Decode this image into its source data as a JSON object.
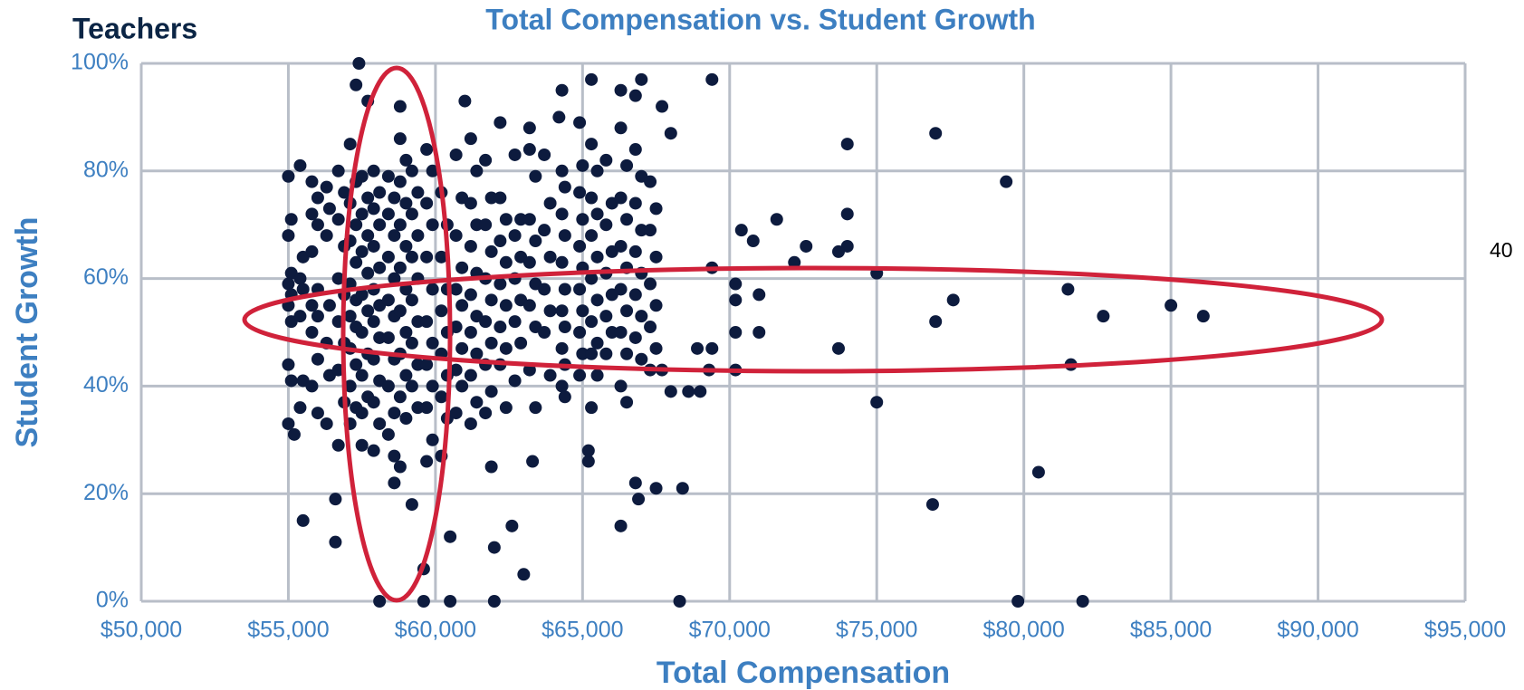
{
  "header": "Teachers",
  "side_note": "40",
  "chart_data": {
    "type": "scatter",
    "title": "Total Compensation vs. Student Growth",
    "x_label": "Total Compensation",
    "y_label": "Student Growth",
    "color": "#0d1b3e",
    "grid": true,
    "xlim": [
      50000,
      95000
    ],
    "ylim": [
      0,
      100
    ],
    "xticks": [
      {
        "value": 50000,
        "label": "$50,000"
      },
      {
        "value": 55000,
        "label": "$55,000"
      },
      {
        "value": 60000,
        "label": "$60,000"
      },
      {
        "value": 65000,
        "label": "$65,000"
      },
      {
        "value": 70000,
        "label": "$70,000"
      },
      {
        "value": 75000,
        "label": "$75,000"
      },
      {
        "value": 80000,
        "label": "$80,000"
      },
      {
        "value": 85000,
        "label": "$85,000"
      },
      {
        "value": 90000,
        "label": "$90,000"
      },
      {
        "value": 95000,
        "label": "$95,000"
      }
    ],
    "yticks": [
      {
        "value": 0,
        "label": "0%"
      },
      {
        "value": 20,
        "label": "20%"
      },
      {
        "value": 40,
        "label": "40%"
      },
      {
        "value": 60,
        "label": "60%"
      },
      {
        "value": 80,
        "label": "80%"
      },
      {
        "value": 100,
        "label": "100%"
      }
    ],
    "x": [
      77000,
      74000,
      79400,
      75000,
      77600,
      81500,
      77000,
      82700,
      85000,
      86100,
      73700,
      81600,
      75000,
      80500,
      76900,
      79800,
      82000,
      68300,
      57400,
      69400,
      67000,
      65300,
      66300,
      66800,
      64300,
      64200,
      61000,
      67700,
      62200,
      63200,
      68000,
      58800,
      57300,
      57700,
      74000,
      74000,
      73700,
      72600,
      72200,
      71600,
      70800,
      70400,
      69400,
      70200,
      70200,
      71000,
      71000,
      70200,
      70200,
      69300,
      68900,
      69400,
      68600,
      69000,
      68000,
      67700,
      68400,
      67500,
      66900,
      66800,
      66300,
      65200,
      65200,
      63300,
      63000,
      62600,
      62000,
      61900,
      62000,
      60500,
      59600,
      59600,
      60500,
      58100,
      59200,
      58800,
      58600,
      57500,
      56600,
      56600,
      55500,
      55200,
      55000,
      55000,
      55100,
      55000,
      55100,
      55000,
      55100,
      55000,
      55100,
      55000,
      55100,
      55400,
      55500,
      55400,
      55500,
      55400,
      55500,
      55400,
      55800,
      56000,
      55800,
      56000,
      55800,
      56000,
      55800,
      56000,
      55800,
      56000,
      55800,
      56000,
      56300,
      56400,
      56300,
      56400,
      56300,
      56400,
      56300,
      56700,
      56900,
      56700,
      56900,
      56700,
      56900,
      56700,
      56900,
      56700,
      56900,
      56700,
      57100,
      57300,
      57100,
      57300,
      57100,
      57300,
      57100,
      57300,
      57100,
      57300,
      57100,
      57300,
      57100,
      57300,
      57100,
      57500,
      57700,
      57500,
      57700,
      57500,
      57700,
      57500,
      57700,
      57500,
      57700,
      57500,
      57700,
      57500,
      57900,
      58100,
      57900,
      58100,
      57900,
      58100,
      57900,
      58100,
      57900,
      58100,
      57900,
      58100,
      57900,
      58100,
      57900,
      58400,
      58600,
      58400,
      58600,
      58400,
      58600,
      58400,
      58600,
      58400,
      58600,
      58400,
      58600,
      58400,
      58600,
      58800,
      59000,
      58800,
      59000,
      58800,
      59000,
      58800,
      59000,
      58800,
      59000,
      58800,
      59000,
      58800,
      59000,
      59200,
      59400,
      59200,
      59400,
      59200,
      59400,
      59200,
      59400,
      59200,
      59400,
      59200,
      59400,
      59700,
      59900,
      59700,
      59900,
      59700,
      59900,
      59700,
      59900,
      59700,
      59900,
      59700,
      59900,
      59700,
      60200,
      60400,
      60200,
      60400,
      60200,
      60400,
      60200,
      60400,
      60200,
      60400,
      60200,
      60700,
      60900,
      60700,
      60900,
      60700,
      60900,
      60700,
      60900,
      60700,
      60900,
      60700,
      61200,
      61400,
      61200,
      61400,
      61200,
      61400,
      61200,
      61400,
      61200,
      61400,
      61200,
      61400,
      61200,
      61700,
      61900,
      61700,
      61900,
      61700,
      61900,
      61700,
      61900,
      61700,
      61900,
      61700,
      62200,
      62400,
      62200,
      62400,
      62200,
      62400,
      62200,
      62400,
      62200,
      62400,
      62700,
      62900,
      62700,
      62900,
      62700,
      62900,
      62700,
      62900,
      62700,
      63200,
      63400,
      63200,
      63400,
      63200,
      63400,
      63200,
      63400,
      63200,
      63400,
      63700,
      63900,
      63700,
      63900,
      63700,
      63900,
      63700,
      63900,
      64300,
      64400,
      64300,
      64400,
      64300,
      64400,
      64300,
      64400,
      64300,
      64400,
      64300,
      64400,
      64900,
      65000,
      64900,
      65000,
      64900,
      65000,
      64900,
      65000,
      64900,
      65000,
      64900,
      65300,
      65500,
      65300,
      65500,
      65300,
      65500,
      65300,
      65500,
      65300,
      65500,
      65300,
      65500,
      65300,
      65800,
      66000,
      65800,
      66000,
      65800,
      66000,
      65800,
      66000,
      65800,
      66300,
      66500,
      66300,
      66500,
      66300,
      66500,
      66300,
      66500,
      66300,
      66500,
      66300,
      66500,
      66800,
      67000,
      66800,
      67000,
      66800,
      67000,
      66800,
      67000,
      66800,
      67000,
      67300,
      67500,
      67300,
      67500,
      67300,
      67500,
      67300,
      67500,
      67300
    ],
    "values": [
      87,
      85,
      78,
      61,
      56,
      58,
      52,
      53,
      55,
      53,
      47,
      44,
      37,
      24,
      18,
      0,
      0,
      0,
      100,
      97,
      97,
      97,
      95,
      94,
      95,
      90,
      93,
      92,
      89,
      88,
      87,
      92,
      96,
      93,
      72,
      66,
      65,
      66,
      63,
      71,
      67,
      69,
      62,
      59,
      56,
      57,
      50,
      50,
      43,
      43,
      47,
      47,
      39,
      39,
      39,
      43,
      21,
      21,
      19,
      22,
      14,
      26,
      28,
      26,
      5,
      14,
      10,
      25,
      0,
      12,
      0,
      6,
      0,
      0,
      18,
      25,
      22,
      29,
      19,
      11,
      15,
      31,
      33,
      79,
      71,
      68,
      61,
      59,
      57,
      55,
      52,
      44,
      41,
      81,
      64,
      60,
      58,
      53,
      41,
      36,
      78,
      75,
      72,
      70,
      65,
      58,
      55,
      53,
      50,
      45,
      40,
      35,
      77,
      73,
      68,
      55,
      48,
      42,
      33,
      80,
      76,
      71,
      66,
      60,
      57,
      52,
      48,
      43,
      37,
      29,
      85,
      78,
      74,
      70,
      67,
      63,
      59,
      56,
      53,
      51,
      47,
      44,
      40,
      36,
      33,
      79,
      75,
      72,
      68,
      65,
      61,
      57,
      54,
      50,
      46,
      42,
      38,
      35,
      80,
      76,
      73,
      70,
      66,
      62,
      58,
      55,
      52,
      49,
      45,
      41,
      37,
      33,
      28,
      79,
      75,
      72,
      68,
      64,
      60,
      56,
      53,
      49,
      45,
      40,
      35,
      31,
      27,
      86,
      82,
      78,
      74,
      70,
      66,
      62,
      58,
      54,
      50,
      46,
      42,
      38,
      34,
      80,
      76,
      72,
      68,
      64,
      60,
      56,
      52,
      48,
      44,
      40,
      36,
      84,
      80,
      74,
      70,
      64,
      58,
      52,
      48,
      44,
      40,
      36,
      30,
      26,
      76,
      70,
      64,
      58,
      54,
      50,
      46,
      42,
      38,
      34,
      27,
      83,
      75,
      68,
      62,
      58,
      55,
      51,
      47,
      43,
      40,
      35,
      86,
      80,
      74,
      70,
      66,
      61,
      57,
      53,
      50,
      46,
      42,
      37,
      33,
      82,
      75,
      70,
      65,
      60,
      56,
      52,
      48,
      44,
      39,
      35,
      75,
      71,
      67,
      63,
      59,
      55,
      51,
      47,
      44,
      36,
      83,
      71,
      68,
      64,
      60,
      56,
      52,
      48,
      41,
      84,
      79,
      71,
      67,
      63,
      59,
      55,
      51,
      43,
      36,
      83,
      74,
      69,
      64,
      58,
      54,
      50,
      42,
      80,
      77,
      72,
      68,
      63,
      58,
      54,
      51,
      47,
      44,
      40,
      38,
      89,
      81,
      76,
      71,
      66,
      62,
      58,
      54,
      50,
      46,
      42,
      85,
      80,
      75,
      72,
      68,
      64,
      60,
      56,
      52,
      48,
      46,
      42,
      36,
      82,
      74,
      70,
      65,
      61,
      57,
      53,
      50,
      46,
      88,
      81,
      75,
      71,
      66,
      62,
      58,
      54,
      50,
      46,
      40,
      37,
      84,
      79,
      74,
      69,
      65,
      61,
      57,
      53,
      49,
      45,
      78,
      73,
      69,
      64,
      59,
      55,
      51,
      47,
      43
    ]
  }
}
